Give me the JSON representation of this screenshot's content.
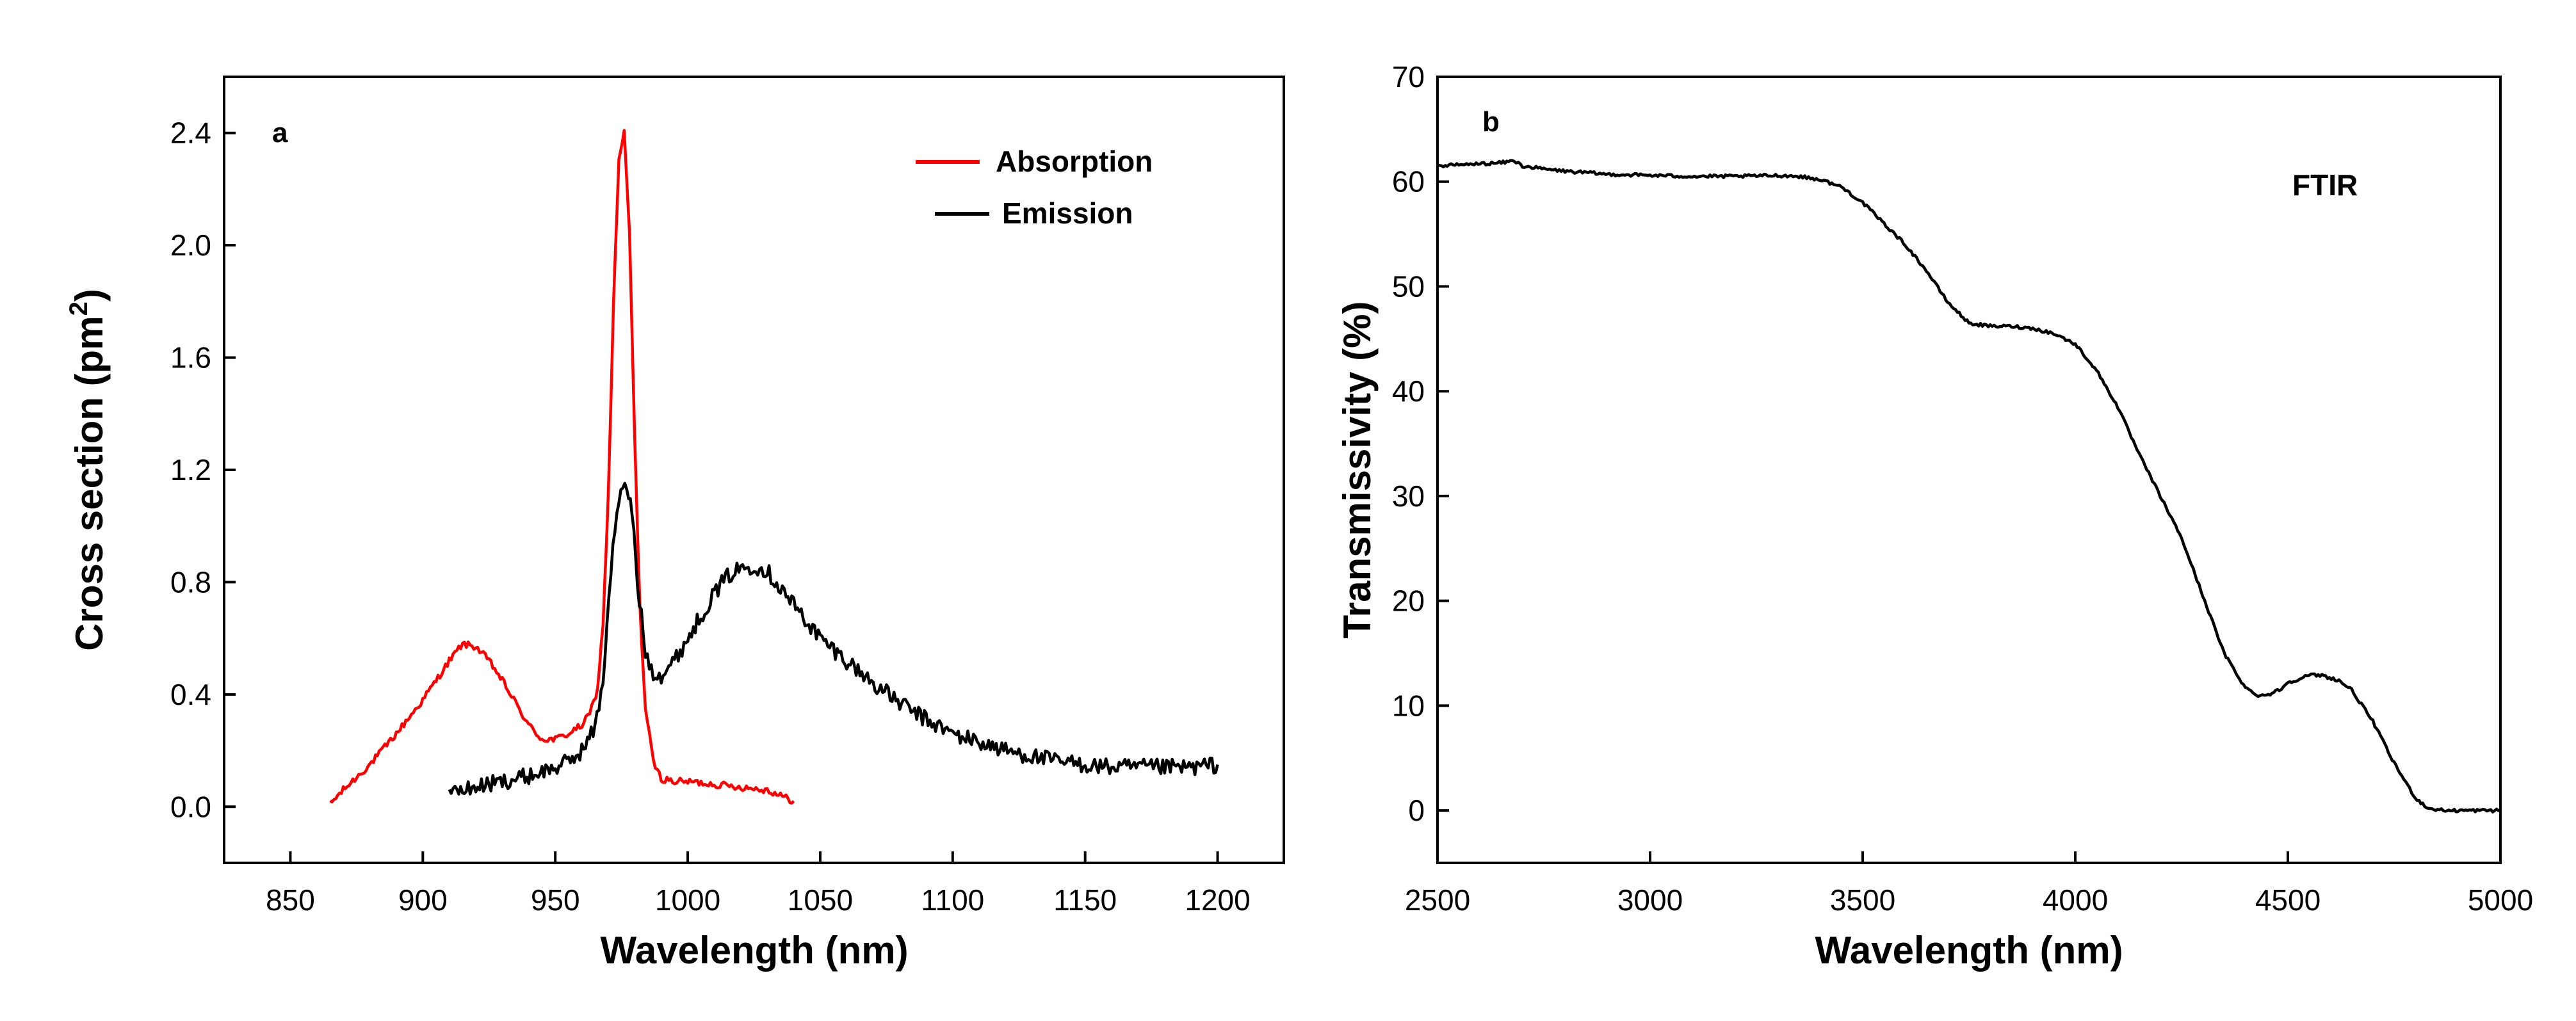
{
  "chart_data": [
    {
      "panel": "a",
      "type": "line",
      "xlabel": "Wavelength (nm)",
      "ylabel_main": "Cross section (pm",
      "ylabel_sup": "2",
      "ylabel_close": ")",
      "xlim": [
        825,
        1225
      ],
      "ylim": [
        -0.2,
        2.6
      ],
      "xticks": [
        850,
        900,
        950,
        1000,
        1050,
        1100,
        1150,
        1200
      ],
      "yticks": [
        0.0,
        0.4,
        0.8,
        1.2,
        1.6,
        2.0,
        2.4
      ],
      "ytick_labels": [
        "0.0",
        "0.4",
        "0.8",
        "1.2",
        "1.6",
        "2.0",
        "2.4"
      ],
      "legend_position": "top-right",
      "series": [
        {
          "name": "Absorption",
          "color": "#ff0000",
          "noise": 0.012,
          "x": [
            865,
            870,
            880,
            890,
            900,
            910,
            915,
            920,
            925,
            930,
            935,
            940,
            945,
            950,
            955,
            960,
            963,
            966,
            968,
            970,
            972,
            974,
            976,
            978,
            980,
            982,
            984,
            987,
            990,
            995,
            1000,
            1010,
            1020,
            1030,
            1040
          ],
          "y": [
            0.01,
            0.06,
            0.15,
            0.26,
            0.38,
            0.52,
            0.58,
            0.57,
            0.52,
            0.45,
            0.37,
            0.29,
            0.24,
            0.24,
            0.26,
            0.29,
            0.33,
            0.42,
            0.65,
            1.1,
            1.8,
            2.3,
            2.4,
            2.05,
            1.3,
            0.7,
            0.35,
            0.16,
            0.1,
            0.09,
            0.09,
            0.08,
            0.07,
            0.06,
            0.02
          ]
        },
        {
          "name": "Emission",
          "color": "#000000",
          "noise": 0.03,
          "x": [
            910,
            920,
            930,
            940,
            950,
            955,
            960,
            965,
            968,
            971,
            974,
            977,
            979,
            981,
            984,
            987,
            990,
            995,
            1000,
            1005,
            1010,
            1015,
            1020,
            1025,
            1030,
            1035,
            1040,
            1050,
            1060,
            1070,
            1080,
            1090,
            1100,
            1110,
            1120,
            1130,
            1140,
            1150,
            1160,
            1170,
            1180,
            1190,
            1200
          ],
          "y": [
            0.05,
            0.07,
            0.09,
            0.11,
            0.14,
            0.16,
            0.2,
            0.28,
            0.45,
            0.85,
            1.1,
            1.14,
            1.05,
            0.8,
            0.55,
            0.48,
            0.47,
            0.52,
            0.6,
            0.68,
            0.76,
            0.82,
            0.85,
            0.86,
            0.84,
            0.78,
            0.72,
            0.6,
            0.52,
            0.44,
            0.37,
            0.31,
            0.26,
            0.23,
            0.2,
            0.18,
            0.16,
            0.15,
            0.14,
            0.14,
            0.14,
            0.14,
            0.15
          ]
        }
      ]
    },
    {
      "panel": "b",
      "type": "line",
      "xlabel": "Wavelength (nm)",
      "ylabel": "Transmissivity (%)",
      "xlim": [
        2500,
        5000
      ],
      "ylim": [
        -5,
        70
      ],
      "xticks": [
        2500,
        3000,
        3500,
        4000,
        4500,
        5000
      ],
      "yticks": [
        0,
        10,
        20,
        30,
        40,
        50,
        60,
        70
      ],
      "annotation": "FTIR",
      "series": [
        {
          "name": "FTIR",
          "color": "#000000",
          "noise": 0.15,
          "x": [
            2500,
            2550,
            2600,
            2650,
            2680,
            2700,
            2750,
            2800,
            2900,
            3000,
            3100,
            3200,
            3300,
            3350,
            3400,
            3450,
            3500,
            3550,
            3600,
            3650,
            3700,
            3750,
            3800,
            3850,
            3900,
            3950,
            4000,
            4050,
            4100,
            4150,
            4200,
            4250,
            4300,
            4350,
            4400,
            4430,
            4450,
            4480,
            4500,
            4550,
            4580,
            4620,
            4650,
            4700,
            4750,
            4800,
            4830,
            4870,
            4900,
            5000
          ],
          "y": [
            61.5,
            61.6,
            61.7,
            61.8,
            62.0,
            61.5,
            61.2,
            61.0,
            60.7,
            60.6,
            60.5,
            60.5,
            60.6,
            60.5,
            60.2,
            59.5,
            58.0,
            56.0,
            54.0,
            51.5,
            48.5,
            46.5,
            46.2,
            46.2,
            46.0,
            45.5,
            44.5,
            42.0,
            38.5,
            34.0,
            30.0,
            26.0,
            20.5,
            15.0,
            11.7,
            11.0,
            11.0,
            11.5,
            12.2,
            12.9,
            12.9,
            12.4,
            11.5,
            8.5,
            4.5,
            1.2,
            0.2,
            0.0,
            0.0,
            0.0
          ]
        }
      ]
    }
  ]
}
